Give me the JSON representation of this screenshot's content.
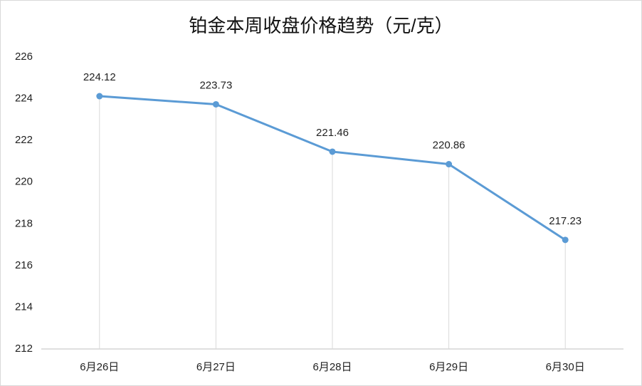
{
  "chart_data": {
    "type": "line",
    "title": "铂金本周收盘价格趋势（元/克）",
    "categories": [
      "6月26日",
      "6月27日",
      "6月28日",
      "6月29日",
      "6月30日"
    ],
    "values": [
      224.12,
      223.73,
      221.46,
      220.86,
      217.23
    ],
    "color": "#5b9bd5",
    "ylim": [
      212,
      226
    ],
    "yticks": [
      212,
      214,
      216,
      218,
      220,
      222,
      224,
      226
    ],
    "grid": false,
    "drop_lines": true
  }
}
